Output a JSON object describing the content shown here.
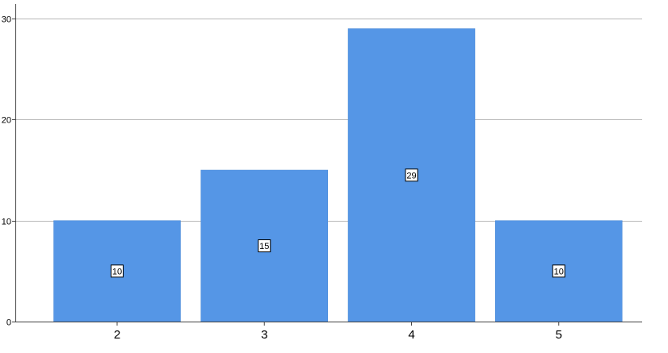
{
  "chart_data": {
    "type": "bar",
    "categories": [
      "2",
      "3",
      "4",
      "5"
    ],
    "values": [
      10,
      15,
      29,
      10
    ],
    "data_labels": [
      "10",
      "15",
      "29",
      "10"
    ],
    "yticks": [
      0,
      10,
      20,
      30
    ],
    "ylim": [
      0,
      30
    ],
    "grid": true,
    "bar_color": "#5596e6",
    "title": "",
    "xlabel": "",
    "ylabel": ""
  }
}
